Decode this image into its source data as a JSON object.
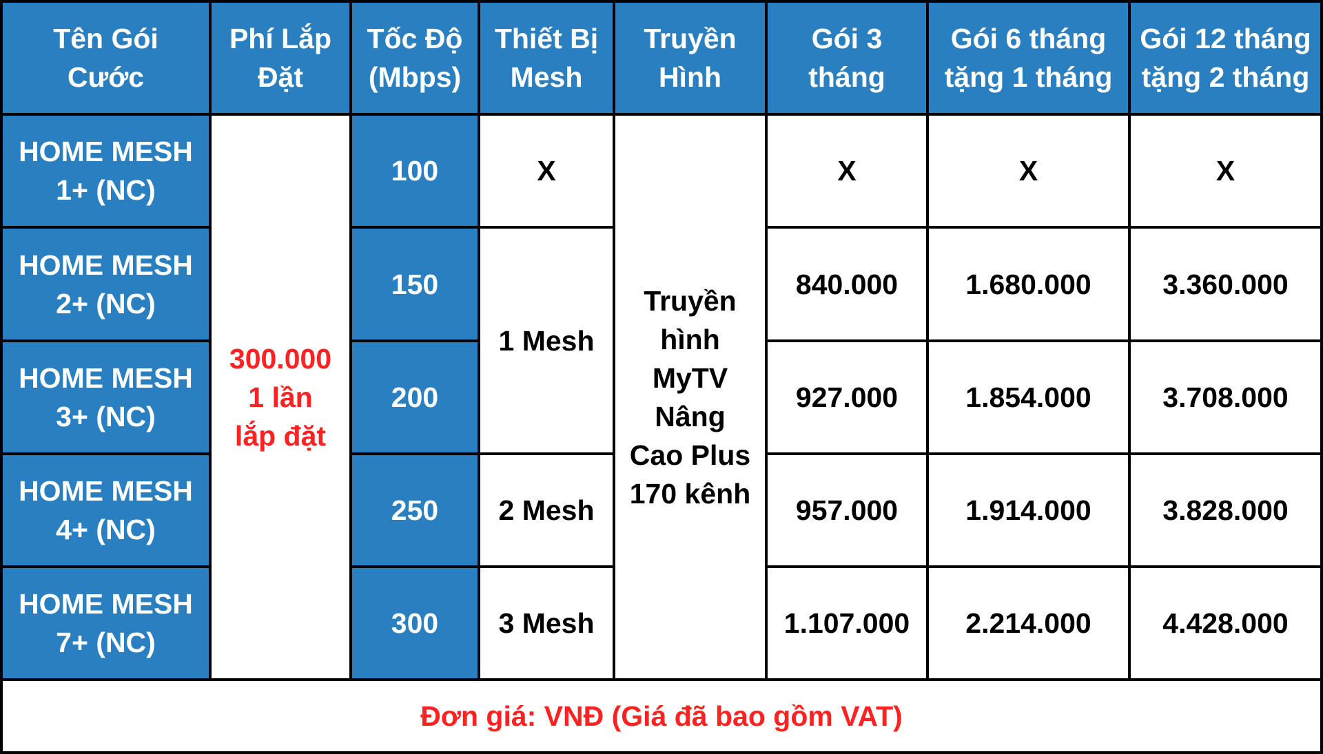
{
  "colors": {
    "header_bg": "#2a7fc1",
    "header_text": "#ffffff",
    "cell_bg": "#ffffff",
    "cell_text": "#000000",
    "accent_red": "#ff2222",
    "border": "#000000"
  },
  "headers": [
    "Tên Gói\nCước",
    "Phí Lắp\nĐặt",
    "Tốc Độ\n(Mbps)",
    "Thiết Bị\nMesh",
    "Truyền\nHình",
    "Gói 3\ntháng",
    "Gói 6 tháng\ntặng 1 tháng",
    "Gói 12 tháng\ntặng 2 tháng"
  ],
  "installation_fee": "300.000\n1 lần\nlắp đặt",
  "tv": "Truyền\nhình\nMyTV\nNâng\nCao Plus\n170 kênh",
  "mesh": {
    "row1": "X",
    "rows2_3": "1 Mesh",
    "row4": "2 Mesh",
    "row5": "3 Mesh"
  },
  "rows": [
    {
      "name": "HOME MESH\n1+ (NC)",
      "speed": "100",
      "p3": "X",
      "p6": "X",
      "p12": "X"
    },
    {
      "name": "HOME MESH\n2+ (NC)",
      "speed": "150",
      "p3": "840.000",
      "p6": "1.680.000",
      "p12": "3.360.000"
    },
    {
      "name": "HOME MESH\n3+ (NC)",
      "speed": "200",
      "p3": "927.000",
      "p6": "1.854.000",
      "p12": "3.708.000"
    },
    {
      "name": "HOME MESH\n4+ (NC)",
      "speed": "250",
      "p3": "957.000",
      "p6": "1.914.000",
      "p12": "3.828.000"
    },
    {
      "name": "HOME MESH\n7+ (NC)",
      "speed": "300",
      "p3": "1.107.000",
      "p6": "2.214.000",
      "p12": "4.428.000"
    }
  ],
  "footer": "Đơn giá: VNĐ (Giá đã bao gồm VAT)"
}
